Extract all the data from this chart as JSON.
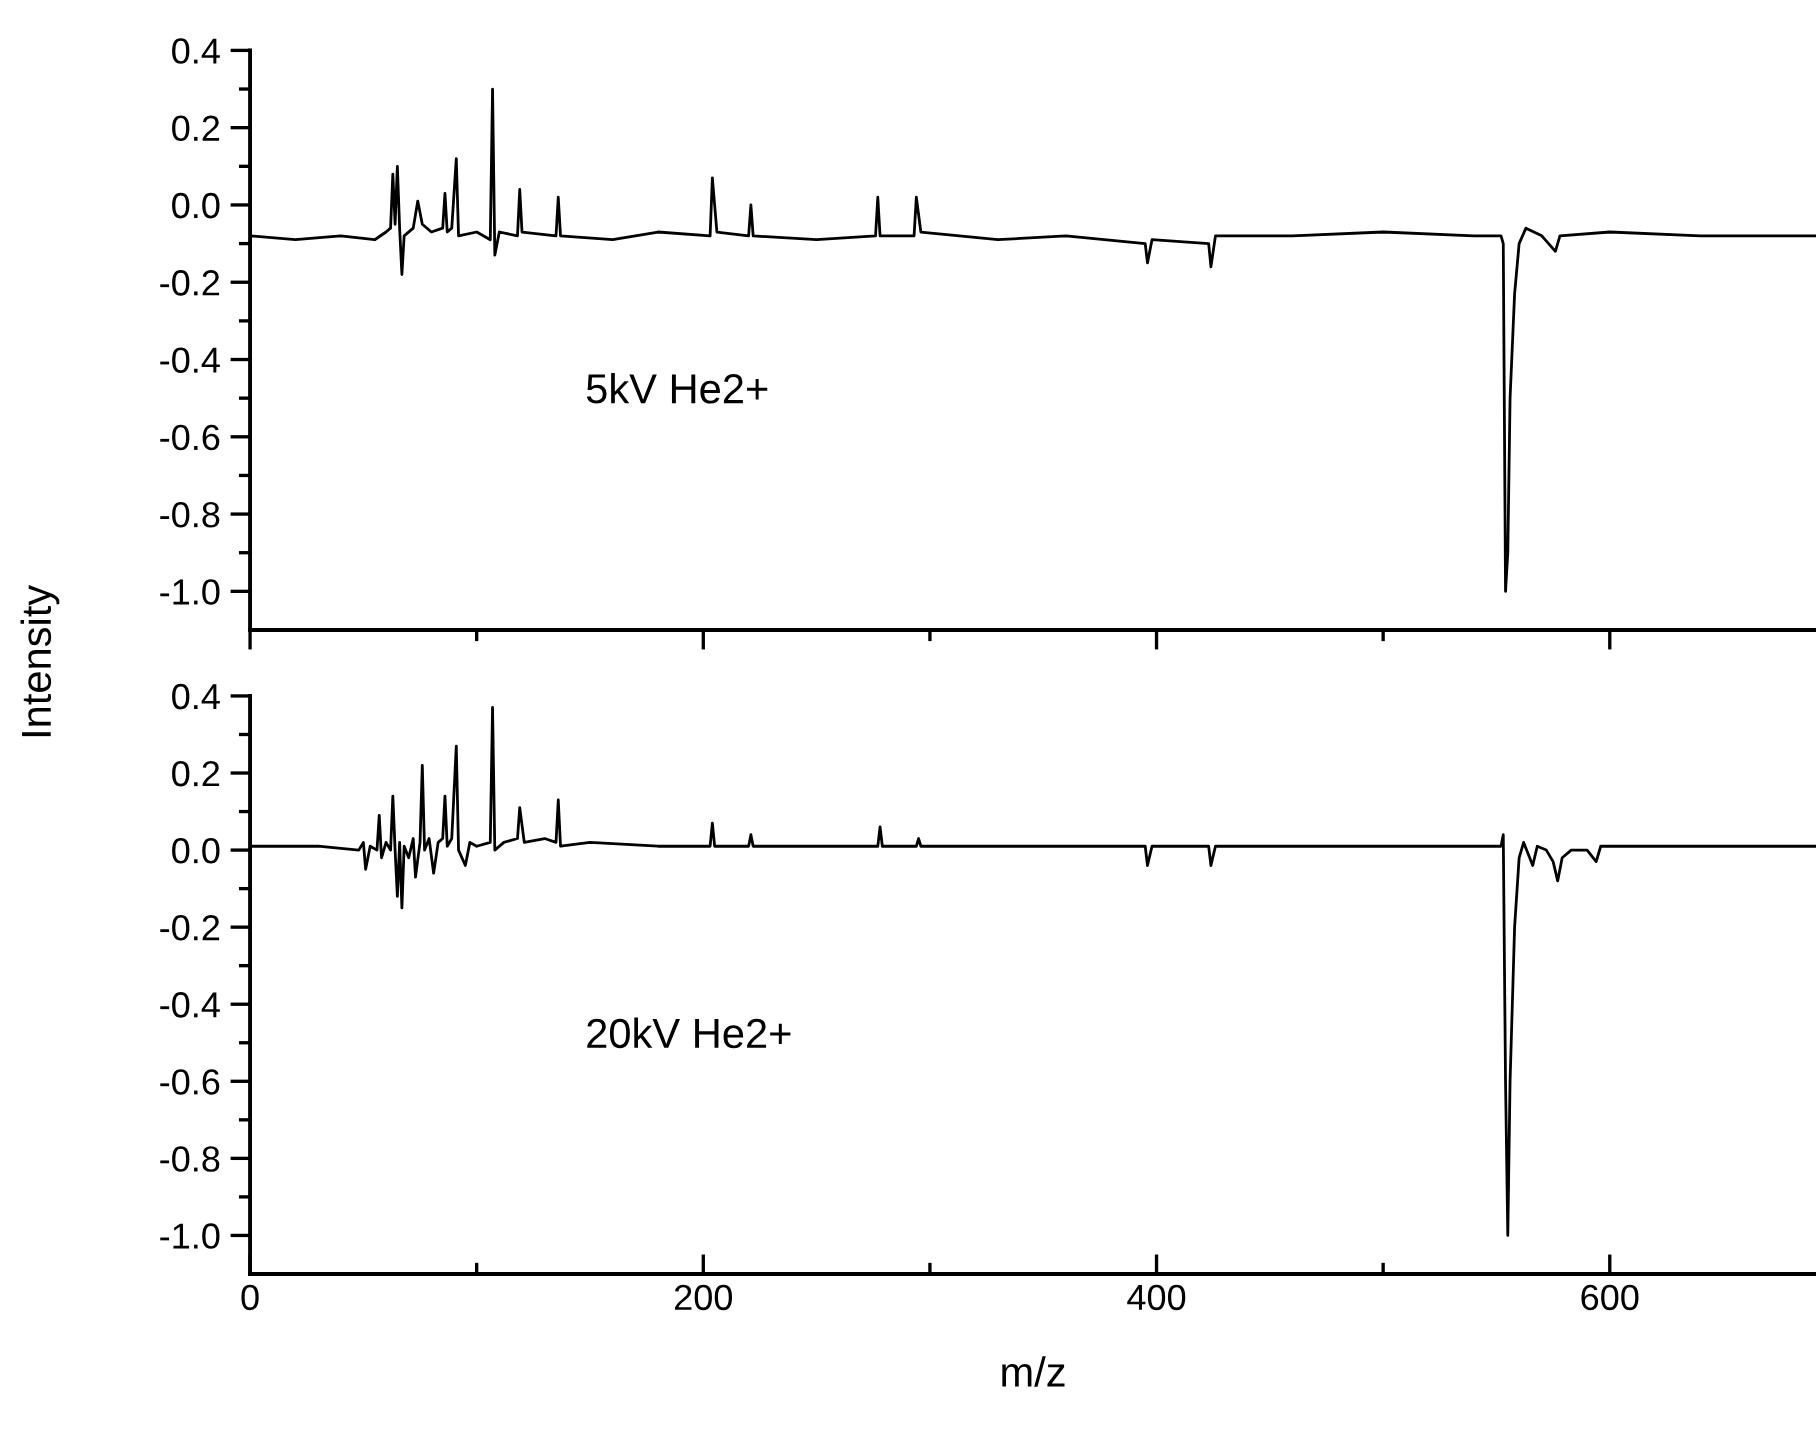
{
  "chart_data": [
    {
      "type": "line",
      "ylabel": "Intensity",
      "annotations": [
        "5kV He2+"
      ],
      "tick_labels": "y",
      "legend": false,
      "grid": false,
      "marker": "none",
      "line_style": "solid",
      "xlim": [
        0,
        691
      ],
      "ylim": [
        -1.1,
        0.4
      ],
      "xticks": [
        0,
        {
          "value": 100,
          "label": null
        },
        200,
        {
          "value": 300,
          "label": null
        },
        400,
        {
          "value": 500,
          "label": null
        },
        600
      ],
      "yticks": [
        0.4,
        {
          "value": 0.3,
          "label": null
        },
        0.2,
        {
          "value": 0.1,
          "label": null
        },
        {
          "value": 0,
          "label": "0.0"
        },
        {
          "value": -0.1,
          "label": null
        },
        -0.2,
        {
          "value": -0.3,
          "label": null
        },
        -0.4,
        {
          "value": -0.5,
          "label": null
        },
        -0.6,
        {
          "value": -0.7,
          "label": null
        },
        -0.8,
        {
          "value": -0.9,
          "label": null
        },
        {
          "value": -1,
          "label": "-1.0"
        }
      ],
      "series": [
        {
          "color": "#000000",
          "x": [
            0,
            20,
            40,
            55,
            60,
            62,
            63,
            64,
            65,
            66,
            67,
            68,
            72,
            74,
            76,
            80,
            85,
            86,
            87,
            89,
            90,
            91,
            92,
            100,
            106,
            107,
            108,
            110,
            118,
            119,
            120,
            135,
            136,
            137,
            160,
            180,
            203,
            204,
            206,
            220,
            221,
            222,
            250,
            276,
            277,
            278,
            293,
            294,
            296,
            330,
            360,
            395,
            396,
            398,
            423,
            424,
            426,
            460,
            500,
            540,
            552,
            553,
            554,
            555,
            556,
            558,
            560,
            563,
            570,
            576,
            578,
            600,
            640,
            691
          ],
          "values": [
            -0.08,
            -0.09,
            -0.08,
            -0.09,
            -0.07,
            -0.06,
            0.08,
            -0.05,
            0.1,
            -0.06,
            -0.18,
            -0.08,
            -0.06,
            0.01,
            -0.05,
            -0.07,
            -0.06,
            0.03,
            -0.07,
            -0.06,
            0.03,
            0.12,
            -0.08,
            -0.07,
            -0.09,
            0.3,
            -0.13,
            -0.07,
            -0.08,
            0.04,
            -0.07,
            -0.08,
            0.02,
            -0.08,
            -0.09,
            -0.07,
            -0.08,
            0.07,
            -0.07,
            -0.08,
            0.0,
            -0.08,
            -0.09,
            -0.08,
            0.02,
            -0.08,
            -0.08,
            0.02,
            -0.07,
            -0.09,
            -0.08,
            -0.1,
            -0.15,
            -0.09,
            -0.1,
            -0.16,
            -0.08,
            -0.08,
            -0.07,
            -0.08,
            -0.08,
            -0.1,
            -1.0,
            -0.9,
            -0.5,
            -0.23,
            -0.1,
            -0.06,
            -0.08,
            -0.12,
            -0.08,
            -0.07,
            -0.08,
            -0.08
          ]
        }
      ]
    },
    {
      "type": "line",
      "xlabel": "m/z",
      "annotations": [
        "20kV He2+"
      ],
      "legend": false,
      "grid": false,
      "marker": "none",
      "line_style": "solid",
      "xlim": [
        0,
        691
      ],
      "ylim": [
        -1.1,
        0.4
      ],
      "xticks": [
        0,
        {
          "value": 100,
          "label": null
        },
        200,
        {
          "value": 300,
          "label": null
        },
        400,
        {
          "value": 500,
          "label": null
        },
        600
      ],
      "yticks": [
        0.4,
        {
          "value": 0.3,
          "label": null
        },
        0.2,
        {
          "value": 0.1,
          "label": null
        },
        {
          "value": 0,
          "label": "0.0"
        },
        {
          "value": -0.1,
          "label": null
        },
        -0.2,
        {
          "value": -0.3,
          "label": null
        },
        -0.4,
        {
          "value": -0.5,
          "label": null
        },
        -0.6,
        {
          "value": -0.7,
          "label": null
        },
        -0.8,
        {
          "value": -0.9,
          "label": null
        },
        {
          "value": -1,
          "label": "-1.0"
        }
      ],
      "series": [
        {
          "color": "#000000",
          "x": [
            0,
            30,
            48,
            50,
            51,
            53,
            56,
            57,
            58,
            60,
            62,
            63,
            64,
            65,
            66,
            67,
            68,
            70,
            72,
            73,
            75,
            76,
            77,
            79,
            81,
            83,
            85,
            86,
            87,
            89,
            91,
            92,
            95,
            97,
            100,
            106,
            107,
            108,
            112,
            118,
            119,
            121,
            130,
            135,
            136,
            137,
            150,
            180,
            203,
            204,
            205,
            220,
            221,
            222,
            250,
            277,
            278,
            279,
            294,
            295,
            296,
            330,
            360,
            395,
            396,
            398,
            423,
            424,
            426,
            470,
            520,
            552,
            553,
            554,
            555,
            556,
            558,
            560,
            562,
            564,
            566,
            568,
            572,
            575,
            577,
            579,
            583,
            590,
            594,
            596,
            640,
            691
          ],
          "values": [
            0.01,
            0.01,
            0.0,
            0.02,
            -0.05,
            0.01,
            0.0,
            0.09,
            -0.02,
            0.02,
            0.0,
            0.14,
            0.0,
            -0.12,
            0.02,
            -0.15,
            0.01,
            -0.02,
            0.03,
            -0.07,
            0.02,
            0.22,
            0.0,
            0.03,
            -0.06,
            0.02,
            0.03,
            0.14,
            0.01,
            0.03,
            0.27,
            0.0,
            -0.04,
            0.02,
            0.01,
            0.02,
            0.37,
            0.0,
            0.02,
            0.03,
            0.11,
            0.02,
            0.03,
            0.02,
            0.13,
            0.01,
            0.02,
            0.01,
            0.01,
            0.07,
            0.01,
            0.01,
            0.04,
            0.01,
            0.01,
            0.01,
            0.06,
            0.01,
            0.01,
            0.03,
            0.01,
            0.01,
            0.01,
            0.01,
            -0.04,
            0.01,
            0.01,
            -0.04,
            0.01,
            0.01,
            0.01,
            0.01,
            0.04,
            -0.6,
            -1.0,
            -0.6,
            -0.2,
            -0.02,
            0.02,
            -0.01,
            -0.04,
            0.01,
            0.0,
            -0.03,
            -0.08,
            -0.02,
            0.0,
            0.0,
            -0.03,
            0.01,
            0.01,
            0.01
          ]
        }
      ]
    }
  ]
}
